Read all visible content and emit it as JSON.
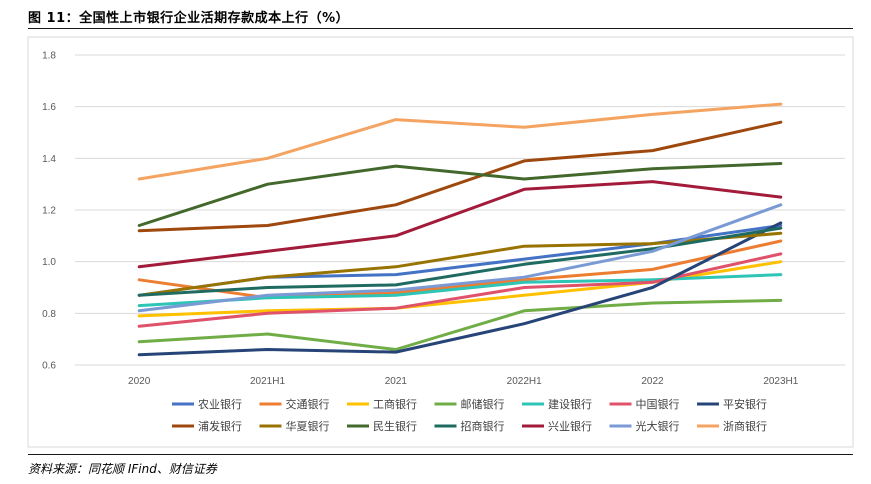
{
  "title": "图 11：全国性上市银行企业活期存款成本上行（%）",
  "source": "资料来源：同花顺 IFind、财信证券",
  "chart_data": {
    "type": "line",
    "title": "全国性上市银行企业活期存款成本上行（%）",
    "xlabel": "",
    "ylabel": "%",
    "ylim": [
      0.6,
      1.8
    ],
    "yticks": [
      "0.6",
      "0.8",
      "1.0",
      "1.2",
      "1.4",
      "1.6",
      "1.8"
    ],
    "categories": [
      "2020",
      "2021H1",
      "2021",
      "2022H1",
      "2022",
      "2023H1"
    ],
    "grid": true,
    "legend": "bottom",
    "series": [
      {
        "name": "农业银行",
        "color": "#4472C4",
        "values": [
          0.87,
          0.94,
          0.95,
          1.01,
          1.07,
          1.14
        ]
      },
      {
        "name": "交通银行",
        "color": "#ED7D31",
        "values": [
          0.93,
          0.86,
          0.88,
          0.93,
          0.97,
          1.08
        ]
      },
      {
        "name": "工商银行",
        "color": "#FFC000",
        "values": [
          0.79,
          0.81,
          0.82,
          0.87,
          0.92,
          1.0
        ]
      },
      {
        "name": "邮储银行",
        "color": "#70AD47",
        "values": [
          0.69,
          0.72,
          0.66,
          0.81,
          0.84,
          0.85
        ]
      },
      {
        "name": "建设银行",
        "color": "#2EC4B6",
        "values": [
          0.83,
          0.86,
          0.87,
          0.92,
          0.93,
          0.95
        ]
      },
      {
        "name": "中国银行",
        "color": "#E0526A",
        "values": [
          0.75,
          0.8,
          0.82,
          0.9,
          0.92,
          1.03
        ]
      },
      {
        "name": "平安银行",
        "color": "#264478",
        "values": [
          0.64,
          0.66,
          0.65,
          0.76,
          0.9,
          1.15
        ]
      },
      {
        "name": "浦发银行",
        "color": "#9E480E",
        "values": [
          1.12,
          1.14,
          1.22,
          1.39,
          1.43,
          1.54
        ]
      },
      {
        "name": "华夏银行",
        "color": "#997300",
        "values": [
          0.87,
          0.94,
          0.98,
          1.06,
          1.07,
          1.11
        ]
      },
      {
        "name": "民生银行",
        "color": "#43682B",
        "values": [
          1.14,
          1.3,
          1.37,
          1.32,
          1.36,
          1.38
        ]
      },
      {
        "name": "招商银行",
        "color": "#1F6B62",
        "values": [
          0.87,
          0.9,
          0.91,
          0.99,
          1.05,
          1.13
        ]
      },
      {
        "name": "兴业银行",
        "color": "#A21B3A",
        "values": [
          0.98,
          1.04,
          1.1,
          1.28,
          1.31,
          1.25
        ]
      },
      {
        "name": "光大银行",
        "color": "#7A9AD6",
        "values": [
          0.81,
          0.87,
          0.89,
          0.94,
          1.04,
          1.22
        ]
      },
      {
        "name": "浙商银行",
        "color": "#F4A460",
        "values": [
          1.32,
          1.4,
          1.55,
          1.52,
          1.57,
          1.61
        ]
      }
    ]
  }
}
